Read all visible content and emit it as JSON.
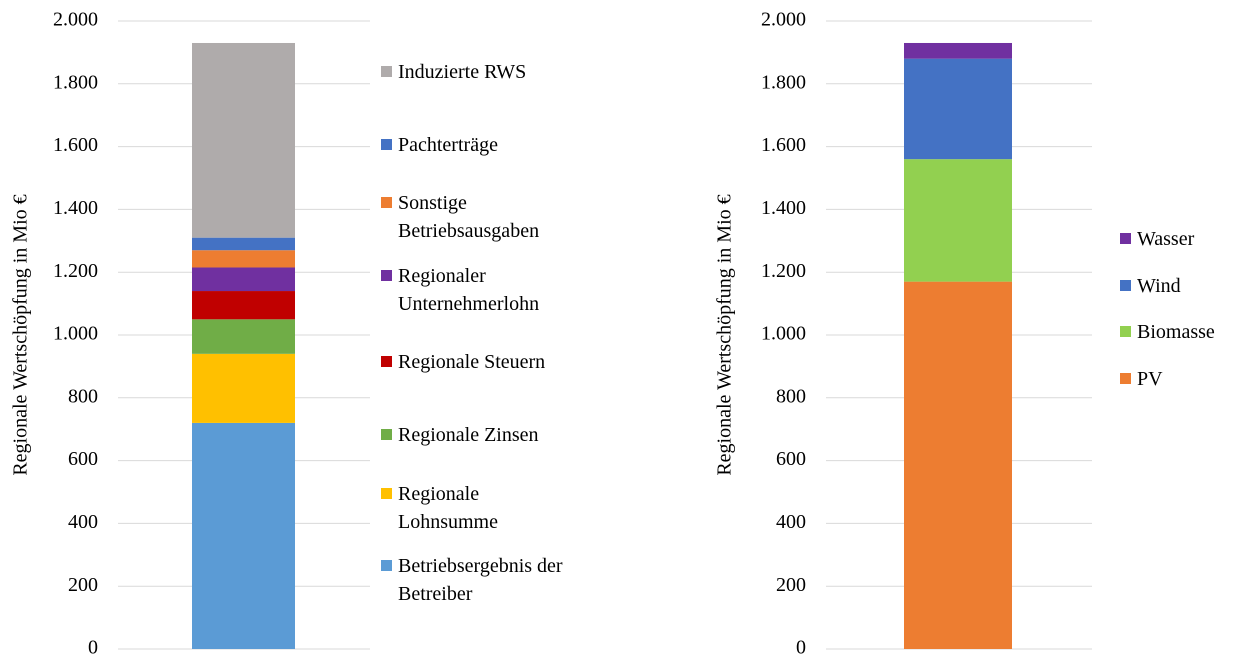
{
  "chart_data": [
    {
      "type": "stacked-bar",
      "ylabel": "Regionale Wertschöpfung in Mio €",
      "categories": [
        null
      ],
      "ylim": [
        0,
        2000
      ],
      "yticks": [
        0,
        200,
        400,
        600,
        800,
        {
          "value": 1000,
          "label": "1.000"
        },
        {
          "value": 1200,
          "label": "1.200"
        },
        {
          "value": 1400,
          "label": "1.400"
        },
        {
          "value": 1600,
          "label": "1.600"
        },
        {
          "value": 1800,
          "label": "1.800"
        },
        {
          "value": 2000,
          "label": "2.000"
        }
      ],
      "grid": true,
      "legend": "right",
      "series": [
        {
          "name": "Betriebsergebnis der Betreiber",
          "color": "#5b9bd5",
          "values": [
            720
          ]
        },
        {
          "name": "Regionale Lohnsumme",
          "color": "#ffc000",
          "values": [
            220
          ]
        },
        {
          "name": "Regionale Zinsen",
          "color": "#70ad47",
          "values": [
            110
          ]
        },
        {
          "name": "Regionale Steuern",
          "color": "#c00000",
          "values": [
            90
          ]
        },
        {
          "name": "Regionaler Unternehmerlohn",
          "color": "#7030a0",
          "values": [
            75
          ]
        },
        {
          "name": "Sonstige Betriebsausgaben",
          "color": "#ed7d31",
          "values": [
            55
          ]
        },
        {
          "name": "Pachterträge",
          "color": "#4472c4",
          "values": [
            40
          ]
        },
        {
          "name": "Induzierte RWS",
          "color": "#afabab",
          "values": [
            620
          ]
        }
      ]
    },
    {
      "type": "stacked-bar",
      "ylabel": "Regionale Wertschöpfung in Mio €",
      "categories": [
        null
      ],
      "ylim": [
        0,
        2000
      ],
      "yticks": [
        0,
        200,
        400,
        600,
        800,
        {
          "value": 1000,
          "label": "1.000"
        },
        {
          "value": 1200,
          "label": "1.200"
        },
        {
          "value": 1400,
          "label": "1.400"
        },
        {
          "value": 1600,
          "label": "1.600"
        },
        {
          "value": 1800,
          "label": "1.800"
        },
        {
          "value": 2000,
          "label": "2.000"
        }
      ],
      "grid": true,
      "legend": "right",
      "series": [
        {
          "name": "PV",
          "color": "#ed7d31",
          "values": [
            1170
          ]
        },
        {
          "name": "Biomasse",
          "color": "#92d050",
          "values": [
            390
          ]
        },
        {
          "name": "Wind",
          "color": "#4472c4",
          "values": [
            320
          ]
        },
        {
          "name": "Wasser",
          "color": "#7030a0",
          "values": [
            50
          ]
        }
      ]
    }
  ]
}
